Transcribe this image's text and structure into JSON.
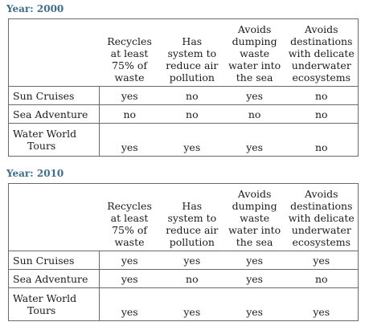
{
  "columns": [
    [
      "Recycles",
      "at least",
      "75% of",
      "waste"
    ],
    [
      "Has",
      "system to",
      "reduce air",
      "pollution"
    ],
    [
      "Avoids",
      "dumping",
      "waste",
      "water into",
      "the sea"
    ],
    [
      "Avoids",
      "destinations",
      "with delicate",
      "underwater",
      "ecosystems"
    ]
  ],
  "tables": [
    {
      "year_label": "Year: 2000",
      "rows": [
        {
          "name": [
            "Sun Cruises"
          ],
          "values": [
            "yes",
            "no",
            "yes",
            "no"
          ]
        },
        {
          "name": [
            "Sea Adventure"
          ],
          "values": [
            "no",
            "no",
            "no",
            "no"
          ]
        },
        {
          "name": [
            "Water World",
            "Tours"
          ],
          "values": [
            "yes",
            "yes",
            "yes",
            "no"
          ]
        }
      ]
    },
    {
      "year_label": "Year: 2010",
      "rows": [
        {
          "name": [
            "Sun Cruises"
          ],
          "values": [
            "yes",
            "yes",
            "yes",
            "yes"
          ]
        },
        {
          "name": [
            "Sea Adventure"
          ],
          "values": [
            "yes",
            "no",
            "yes",
            "no"
          ]
        },
        {
          "name": [
            "Water World",
            "Tours"
          ],
          "values": [
            "yes",
            "yes",
            "yes",
            "yes"
          ]
        }
      ]
    }
  ]
}
